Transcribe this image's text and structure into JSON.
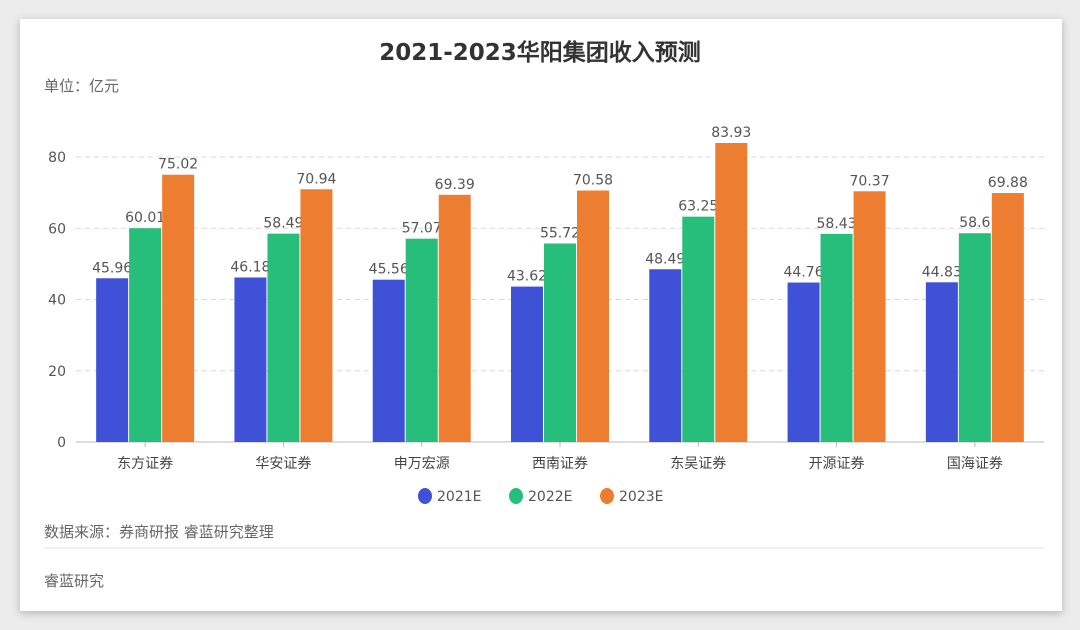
{
  "chart_data": {
    "type": "bar",
    "title": "2021-2023华阳集团收入预测",
    "unit_label": "单位：亿元",
    "categories": [
      "东方证券",
      "华安证券",
      "申万宏源",
      "西南证券",
      "东吴证券",
      "开源证券",
      "国海证券"
    ],
    "series": [
      {
        "name": "2021E",
        "color": "#3f51d6",
        "values": [
          45.96,
          46.18,
          45.56,
          43.62,
          48.49,
          44.76,
          44.83
        ]
      },
      {
        "name": "2022E",
        "color": "#27bd7a",
        "values": [
          60.01,
          58.49,
          57.07,
          55.72,
          63.25,
          58.43,
          58.6
        ]
      },
      {
        "name": "2023E",
        "color": "#ed7d31",
        "values": [
          75.02,
          70.94,
          69.39,
          70.58,
          83.93,
          70.37,
          69.88
        ]
      }
    ],
    "yticks": [
      0,
      20,
      40,
      60,
      80
    ],
    "ylim": [
      0,
      80
    ],
    "grid": true,
    "legend": "bottom"
  },
  "footer": {
    "source": "数据来源：券商研报 睿蓝研究整理",
    "brand": "睿蓝研究"
  }
}
